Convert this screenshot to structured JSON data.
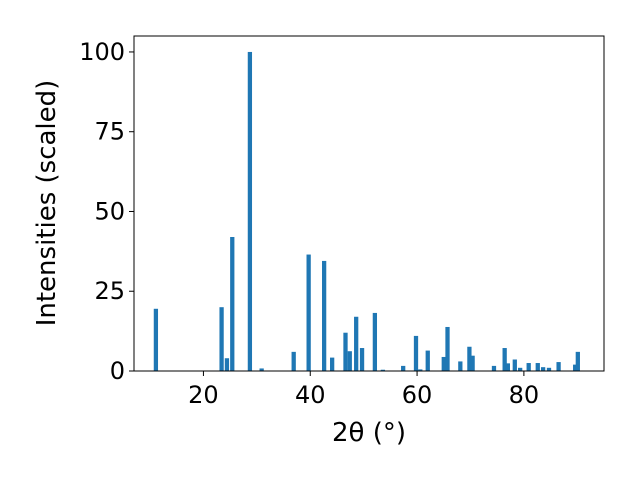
{
  "chart_data": {
    "type": "bar",
    "title": "",
    "xlabel": "2θ (°)",
    "ylabel": "Intensities (scaled)",
    "xlim": [
      7,
      95
    ],
    "ylim": [
      0,
      105
    ],
    "xticks": [
      20,
      40,
      60,
      80
    ],
    "yticks": [
      0,
      25,
      50,
      75,
      100
    ],
    "grid": false,
    "color": "#1f77b4",
    "bar_width": 0.8,
    "x": [
      11.1,
      23.4,
      24.4,
      25.4,
      28.7,
      30.9,
      36.9,
      39.7,
      42.6,
      44.1,
      46.6,
      47.4,
      48.6,
      49.7,
      52.1,
      53.6,
      57.4,
      59.8,
      60.6,
      62.0,
      65.0,
      65.7,
      68.1,
      69.8,
      70.4,
      74.4,
      76.4,
      77.0,
      78.3,
      79.3,
      80.9,
      82.6,
      83.6,
      84.7,
      86.5,
      89.6,
      90.1
    ],
    "values": [
      19.5,
      20.0,
      4.0,
      42.0,
      100.0,
      0.8,
      6.0,
      36.5,
      34.5,
      4.2,
      12.0,
      6.2,
      17.0,
      7.2,
      18.2,
      0.4,
      1.6,
      11.0,
      0.5,
      6.4,
      4.4,
      13.8,
      3.0,
      7.6,
      4.8,
      1.6,
      7.2,
      2.4,
      3.6,
      1.0,
      2.5,
      2.5,
      1.2,
      1.0,
      2.8,
      2.0,
      6.0
    ]
  }
}
